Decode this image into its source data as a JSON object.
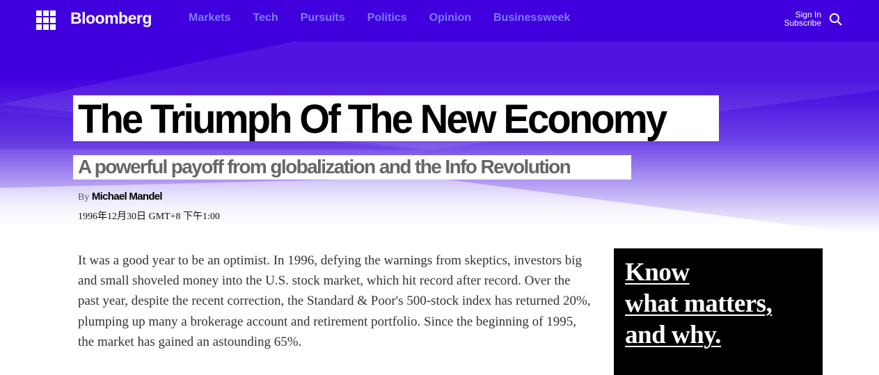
{
  "nav": {
    "logo": "Bloomberg",
    "links": [
      "Markets",
      "Tech",
      "Pursuits",
      "Politics",
      "Opinion",
      "Businessweek"
    ],
    "sign_in": "Sign In",
    "subscribe": "Subscribe",
    "accent": "#4000dd",
    "link_color": "#7b7cff"
  },
  "article": {
    "title": "The Triumph Of The New Economy",
    "subtitle": "A powerful payoff from globalization and the Info Revolution",
    "by": "By",
    "author": "Michael Mandel",
    "date": "1996年12月30日 GMT+8 下午1:00",
    "body": "It was a good year to be an optimist. In 1996, defying the warnings from skeptics, investors big and small shoveled money into the U.S. stock market, which hit record after record. Over the past year, despite the recent correction, the Standard & Poor's 500-stock index has returned 20%, plumping up many a brokerage account and retirement portfolio. Since the beginning of 1995, the market has gained an astounding 65%."
  },
  "ad": {
    "lines": [
      "Know",
      "what matters,",
      "and why."
    ]
  }
}
